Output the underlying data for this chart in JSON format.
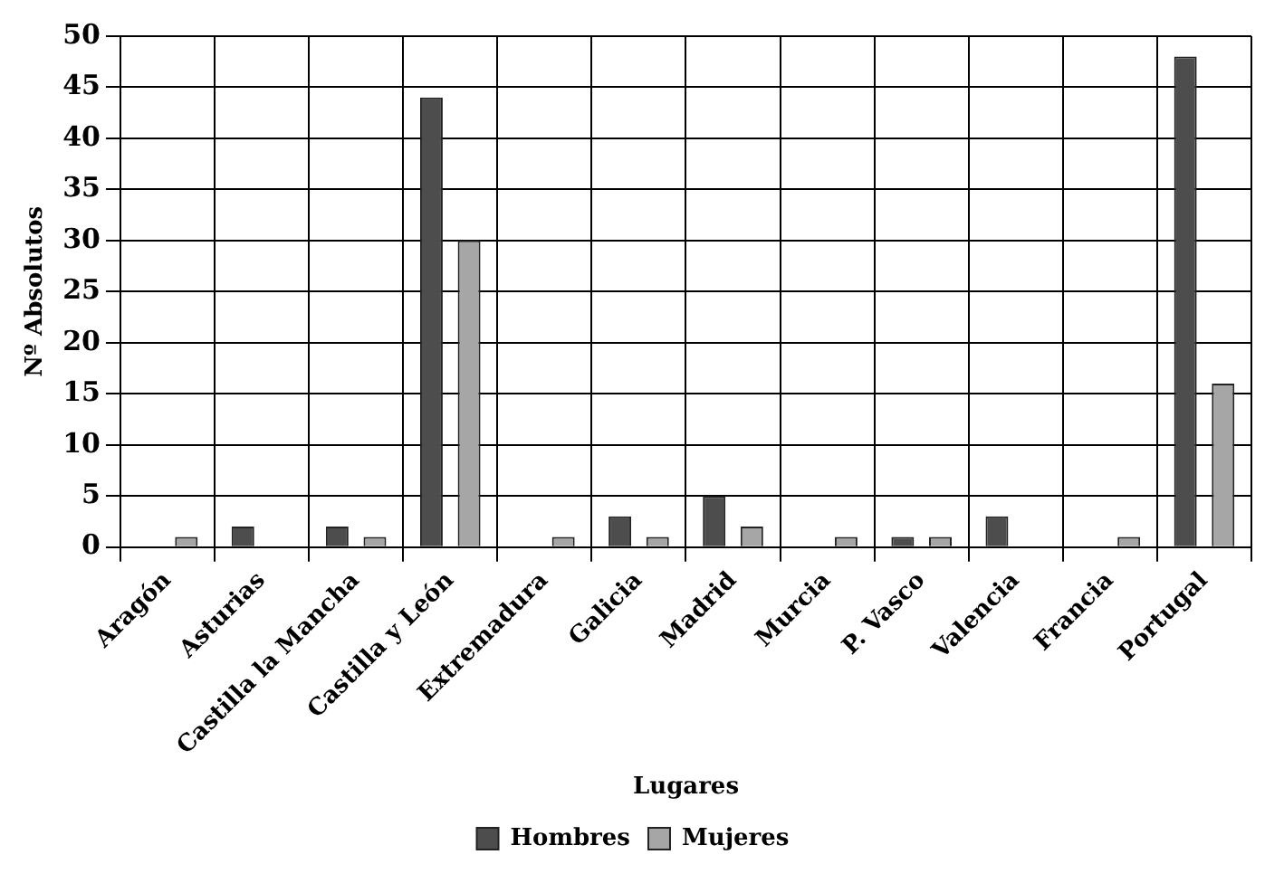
{
  "chart_data": {
    "type": "bar",
    "xlabel": "Lugares",
    "ylabel": "Nº Absolutos",
    "categories": [
      "Aragón",
      "Asturias",
      "Castilla la Mancha",
      "Castilla y León",
      "Extremadura",
      "Galicia",
      "Madrid",
      "Murcia",
      "P. Vasco",
      "Valencia",
      "Francia",
      "Portugal"
    ],
    "series": [
      {
        "name": "Hombres",
        "color": "#4d4d4d",
        "values": [
          0,
          2,
          2,
          44,
          0,
          3,
          5,
          0,
          1,
          3,
          0,
          48
        ]
      },
      {
        "name": "Mujeres",
        "color": "#a6a6a6",
        "values": [
          1,
          0,
          1,
          30,
          1,
          1,
          2,
          1,
          1,
          0,
          1,
          16
        ]
      }
    ],
    "ylim": [
      0,
      50
    ],
    "yticks": [
      0,
      5,
      10,
      15,
      20,
      25,
      30,
      35,
      40,
      45,
      50
    ],
    "grid": true,
    "legend": "bottom"
  }
}
